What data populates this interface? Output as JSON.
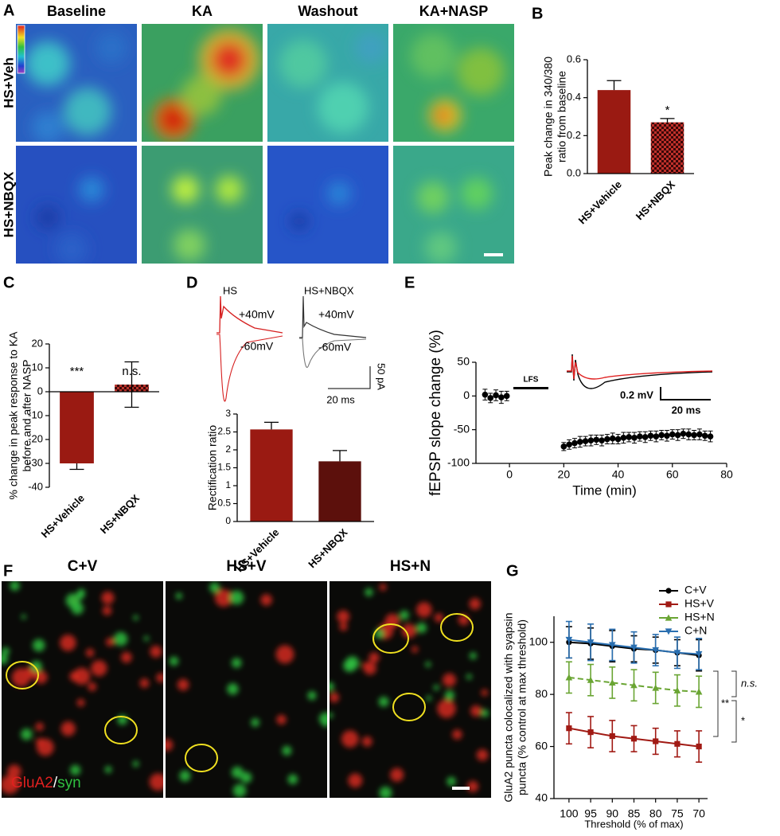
{
  "images": [
    {
      "panel": "A",
      "columns": [
        "Baseline",
        "KA",
        "Washout",
        "KA+NASP"
      ],
      "rows": [
        "HS+Veh",
        "HS+NBQX"
      ]
    },
    {
      "panel": "F",
      "columns": [
        "C+V",
        "HS+V",
        "HS+N"
      ],
      "legend": [
        "GluA2",
        "/",
        "syn"
      ]
    }
  ],
  "chart_data": [
    {
      "panel": "B",
      "type": "bar",
      "ylabel": [
        "Peak change in 340/380",
        "ratio from baseline"
      ],
      "categories": [
        "HS+Vehicle",
        "HS+NBQX"
      ],
      "values": [
        0.44,
        0.27
      ],
      "errors": [
        0.05,
        0.02
      ],
      "colors": [
        "#9a1a12",
        "#c0302a"
      ],
      "fills": [
        "solid",
        "checkered"
      ],
      "ylim": [
        0,
        0.6
      ],
      "yticks": [
        {
          "value": 0,
          "label": "0.0"
        },
        0.2,
        0.4,
        0.6
      ],
      "annotations": [
        "*"
      ]
    },
    {
      "panel": "C",
      "type": "bar",
      "ylabel": [
        "% change in peak response to KA",
        "before and after NASP"
      ],
      "categories": [
        "HS+Vehicle",
        "HS+NBQX"
      ],
      "values": [
        -30,
        3
      ],
      "errors": [
        2.5,
        9.5
      ],
      "colors": [
        "#9a1a12",
        "#b8322a"
      ],
      "fills": [
        "solid",
        "checkered"
      ],
      "ylim": [
        -40,
        20
      ],
      "yticks": [
        -40,
        -30,
        -20,
        -10,
        0,
        10,
        20
      ],
      "annotations": [
        "***",
        "n.s."
      ]
    },
    {
      "panel": "D",
      "type": "bar",
      "traces": {
        "labels": [
          "HS",
          "HS+NBQX"
        ],
        "voltages": [
          "+40mV",
          "-60mV",
          "+40mV",
          "-60mV"
        ],
        "scale": [
          "50 pA",
          "20 ms"
        ]
      },
      "ylabel": "Rectification ratio",
      "categories": [
        "HS+Vehicle",
        "HS+NBQX"
      ],
      "values": [
        2.57,
        1.68
      ],
      "errors": [
        0.2,
        0.3
      ],
      "colors": [
        "#9a1a12",
        "#5c100c"
      ],
      "fills": [
        "solid",
        "solid"
      ],
      "ylim": [
        0,
        3
      ],
      "yticks": [
        0,
        0.5,
        1,
        1.5,
        2,
        2.5,
        3
      ]
    },
    {
      "panel": "E",
      "type": "scatter",
      "ylabel": "fEPSP slope change (%)",
      "xlabel": "Time (min)",
      "x": [
        -9,
        -7,
        -5,
        -3,
        -1,
        20,
        22,
        24,
        26,
        28,
        30,
        32,
        34,
        36,
        38,
        40,
        42,
        44,
        46,
        48,
        50,
        52,
        54,
        56,
        58,
        60,
        62,
        64,
        66,
        68,
        70,
        72,
        74
      ],
      "values": [
        2,
        -3,
        1,
        -2,
        0,
        -75,
        -72,
        -70,
        -68,
        -67,
        -66,
        -65,
        -66,
        -64,
        -63,
        -64,
        -62,
        -61,
        -62,
        -60,
        -61,
        -59,
        -60,
        -58,
        -59,
        -57,
        -58,
        -56,
        -57,
        -58,
        -57,
        -59,
        -60
      ],
      "errors": [
        8,
        7,
        8,
        9,
        7,
        6,
        7,
        7,
        8,
        7,
        8,
        7,
        8,
        7,
        8,
        7,
        8,
        7,
        8,
        7,
        8,
        7,
        8,
        7,
        8,
        7,
        8,
        7,
        8,
        7,
        8,
        7,
        8
      ],
      "color": "#000000",
      "xlim": [
        -10,
        80
      ],
      "xticks": [
        0,
        20,
        40,
        60,
        80
      ],
      "ylim": [
        -100,
        50
      ],
      "yticks": [
        -100,
        -50,
        0,
        50
      ],
      "annotations": [
        "LFS"
      ],
      "inset_scale": [
        "0.2 mV",
        "20 ms"
      ]
    },
    {
      "panel": "G",
      "type": "line",
      "ylabel": [
        "GluA2 puncta colocalized with syapsin",
        "puncta (% control at max threshold)"
      ],
      "xlabel": "Threshold (% of max)",
      "x": [
        100,
        95,
        90,
        85,
        80,
        75,
        70
      ],
      "xlim": [
        102,
        68
      ],
      "xticks": [
        100,
        95,
        90,
        85,
        80,
        75,
        70
      ],
      "ylim": [
        40,
        110
      ],
      "yticks": [
        40,
        60,
        80,
        100
      ],
      "legend": "upper right",
      "series": [
        {
          "name": "C+V",
          "color": "#000000",
          "marker": "circle",
          "linestyle": "solid",
          "values": [
            100,
            99.5,
            98.5,
            97.5,
            97,
            96,
            95
          ],
          "errors": [
            6,
            6,
            6,
            5,
            5,
            5,
            6
          ]
        },
        {
          "name": "HS+V",
          "color": "#a11a14",
          "marker": "square",
          "linestyle": "solid",
          "values": [
            67,
            65.5,
            64,
            63,
            62,
            61,
            60
          ],
          "errors": [
            6,
            6,
            6,
            5,
            5,
            5,
            6
          ]
        },
        {
          "name": "HS+N",
          "color": "#6aa533",
          "marker": "triangle",
          "linestyle": "dashed",
          "values": [
            86.5,
            85.5,
            84.5,
            83.5,
            82.5,
            81.5,
            81
          ],
          "errors": [
            6,
            6,
            6,
            6,
            6,
            6,
            6
          ]
        },
        {
          "name": "C+N",
          "color": "#2a6fb0",
          "marker": "triangle-down",
          "linestyle": "solid",
          "values": [
            101,
            100,
            99,
            98,
            97,
            96,
            95.5
          ],
          "errors": [
            7,
            7,
            6,
            6,
            6,
            6,
            6
          ]
        }
      ],
      "annotations": [
        "n.s.",
        "**",
        "*"
      ]
    }
  ]
}
